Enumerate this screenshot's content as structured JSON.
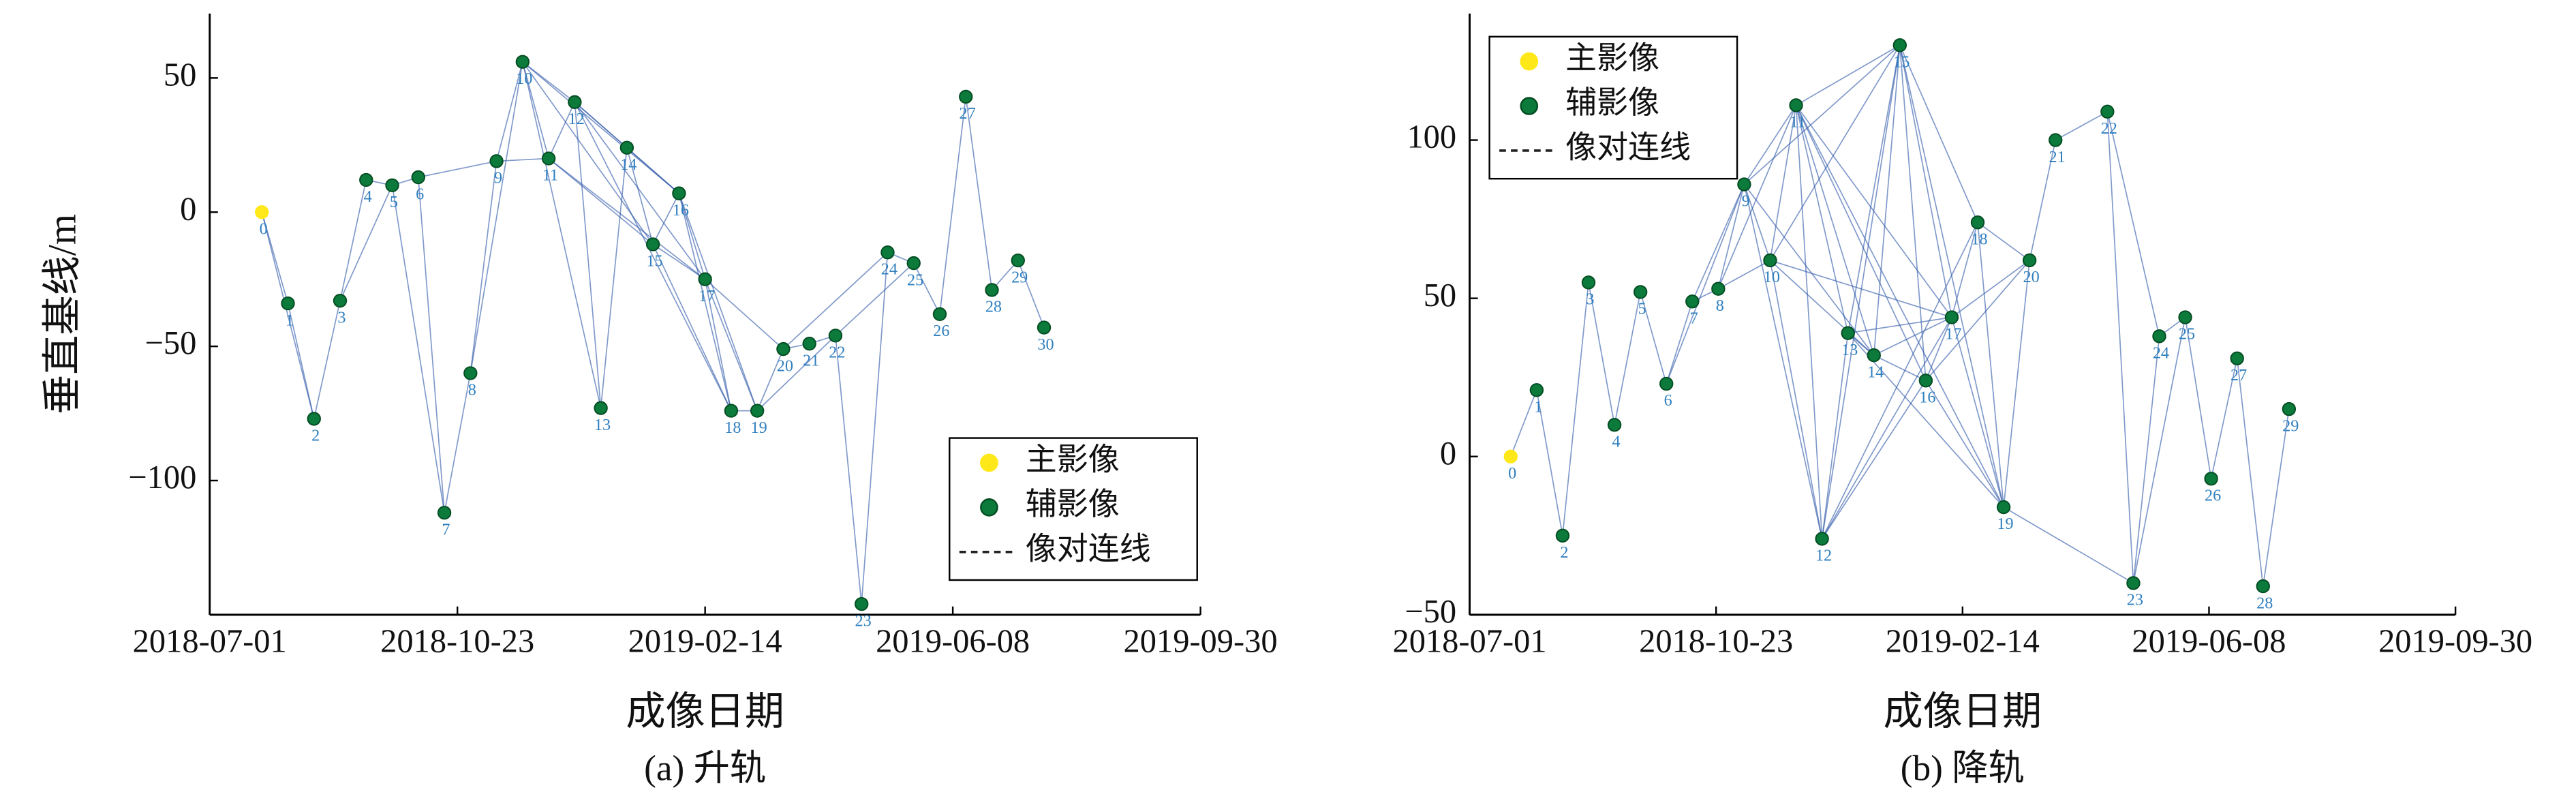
{
  "chart_data": [
    {
      "type": "scatter",
      "caption": "(a) 升轨",
      "xlabel": "成像日期",
      "ylabel": "垂直基线/m",
      "xlim": [
        "2018-07-01",
        "2019-09-30"
      ],
      "xticks": [
        "2018-07-01",
        "2018-10-23",
        "2019-02-14",
        "2019-06-08",
        "2019-09-30"
      ],
      "ylim": [
        -150,
        74
      ],
      "yticks": [
        {
          "value": -100,
          "label": "−100"
        },
        {
          "value": -50,
          "label": "−50"
        },
        0,
        50
      ],
      "legend": "lower right",
      "series": [
        {
          "name": "主影像",
          "color": "#ffe81a",
          "x": [
            "2018-07-25"
          ],
          "values": [
            0
          ],
          "labels": [
            "0"
          ]
        },
        {
          "name": "辅影像",
          "color": "#0b7a3b",
          "x": [
            "2018-08-06",
            "2018-08-18",
            "2018-08-30",
            "2018-09-11",
            "2018-09-23",
            "2018-10-05",
            "2018-10-17",
            "2018-10-29",
            "2018-11-10",
            "2018-11-22",
            "2018-12-04",
            "2018-12-16",
            "2018-12-28",
            "2019-01-09",
            "2019-01-21",
            "2019-02-02",
            "2019-02-14",
            "2019-02-26",
            "2019-03-10",
            "2019-03-22",
            "2019-04-03",
            "2019-04-15",
            "2019-04-27",
            "2019-05-09",
            "2019-05-21",
            "2019-06-02",
            "2019-06-14",
            "2019-06-26",
            "2019-07-08",
            "2019-07-20"
          ],
          "values": [
            -34,
            -77,
            -33,
            12,
            10,
            13,
            -112,
            -60,
            19,
            56,
            20,
            41,
            -73,
            24,
            -12,
            7,
            -25,
            -74,
            -74,
            -51,
            -49,
            -46,
            -146,
            -15,
            -19,
            -38,
            43,
            -29,
            -18,
            -43
          ],
          "labels": [
            "1",
            "2",
            "3",
            "4",
            "5",
            "6",
            "7",
            "8",
            "9",
            "10",
            "11",
            "12",
            "13",
            "14",
            "15",
            "16",
            "17",
            "18",
            "19",
            "20",
            "21",
            "22",
            "23",
            "24",
            "25",
            "26",
            "27",
            "28",
            "29",
            "30"
          ]
        }
      ],
      "links": {
        "name": "像对连线",
        "color": "#2d57a8",
        "pairs": [
          [
            0,
            1
          ],
          [
            0,
            2
          ],
          [
            1,
            2
          ],
          [
            2,
            3
          ],
          [
            3,
            4
          ],
          [
            3,
            5
          ],
          [
            4,
            5
          ],
          [
            5,
            6
          ],
          [
            5,
            7
          ],
          [
            6,
            7
          ],
          [
            6,
            9
          ],
          [
            7,
            8
          ],
          [
            8,
            9
          ],
          [
            8,
            10
          ],
          [
            9,
            10
          ],
          [
            9,
            11
          ],
          [
            10,
            11
          ],
          [
            10,
            12
          ],
          [
            10,
            13
          ],
          [
            10,
            15
          ],
          [
            10,
            16
          ],
          [
            11,
            12
          ],
          [
            11,
            15
          ],
          [
            11,
            17
          ],
          [
            12,
            13
          ],
          [
            12,
            14
          ],
          [
            12,
            16
          ],
          [
            12,
            17
          ],
          [
            12,
            18
          ],
          [
            13,
            14
          ],
          [
            14,
            15
          ],
          [
            14,
            16
          ],
          [
            15,
            16
          ],
          [
            15,
            17
          ],
          [
            15,
            18
          ],
          [
            16,
            17
          ],
          [
            16,
            18
          ],
          [
            16,
            19
          ],
          [
            17,
            18
          ],
          [
            17,
            19
          ],
          [
            17,
            20
          ],
          [
            18,
            19
          ],
          [
            19,
            20
          ],
          [
            19,
            22
          ],
          [
            20,
            21
          ],
          [
            20,
            24
          ],
          [
            21,
            22
          ],
          [
            22,
            23
          ],
          [
            22,
            25
          ],
          [
            23,
            24
          ],
          [
            24,
            25
          ],
          [
            25,
            26
          ],
          [
            26,
            27
          ],
          [
            27,
            28
          ],
          [
            28,
            29
          ],
          [
            29,
            30
          ]
        ]
      }
    },
    {
      "type": "scatter",
      "caption": "(b) 降轨",
      "xlabel": "成像日期",
      "xlim": [
        "2018-07-01",
        "2019-09-30"
      ],
      "xticks": [
        "2018-07-01",
        "2018-10-23",
        "2019-02-14",
        "2019-06-08",
        "2019-09-30"
      ],
      "ylim": [
        -50,
        140
      ],
      "yticks": [
        {
          "value": -50,
          "label": "−50"
        },
        0,
        50,
        100
      ],
      "legend": "upper left",
      "series": [
        {
          "name": "主影像",
          "color": "#ffe81a",
          "x": [
            "2018-07-20"
          ],
          "values": [
            0
          ],
          "labels": [
            "0"
          ]
        },
        {
          "name": "辅影像",
          "color": "#0b7a3b",
          "x": [
            "2018-08-01",
            "2018-08-13",
            "2018-08-25",
            "2018-09-06",
            "2018-09-18",
            "2018-09-30",
            "2018-10-12",
            "2018-10-24",
            "2018-11-05",
            "2018-11-17",
            "2018-11-29",
            "2018-12-11",
            "2018-12-23",
            "2019-01-04",
            "2019-01-16",
            "2019-01-28",
            "2019-02-09",
            "2019-02-21",
            "2019-03-05",
            "2019-03-17",
            "2019-03-29",
            "2019-04-22",
            "2019-05-04",
            "2019-05-16",
            "2019-05-28",
            "2019-06-09",
            "2019-06-21",
            "2019-07-03",
            "2019-07-15"
          ],
          "values": [
            21,
            -25,
            55,
            10,
            52,
            23,
            49,
            53,
            86,
            62,
            111,
            -26,
            39,
            32,
            130,
            24,
            44,
            74,
            -16,
            62,
            100,
            109,
            -40,
            38,
            44,
            -7,
            31,
            -41,
            15
          ],
          "labels": [
            "1",
            "2",
            "3",
            "4",
            "5",
            "6",
            "7",
            "8",
            "9",
            "10",
            "11",
            "12",
            "13",
            "14",
            "15",
            "16",
            "17",
            "18",
            "19",
            "20",
            "21",
            "22",
            "23",
            "24",
            "25",
            "26",
            "27",
            "28",
            "29"
          ]
        }
      ],
      "links": {
        "name": "像对连线",
        "color": "#2d57a8",
        "pairs": [
          [
            0,
            1
          ],
          [
            1,
            2
          ],
          [
            2,
            3
          ],
          [
            3,
            4
          ],
          [
            4,
            5
          ],
          [
            5,
            6
          ],
          [
            6,
            7
          ],
          [
            6,
            9
          ],
          [
            7,
            8
          ],
          [
            7,
            9
          ],
          [
            8,
            9
          ],
          [
            8,
            10
          ],
          [
            8,
            11
          ],
          [
            9,
            10
          ],
          [
            9,
            11
          ],
          [
            9,
            12
          ],
          [
            9,
            14
          ],
          [
            9,
            15
          ],
          [
            10,
            11
          ],
          [
            10,
            12
          ],
          [
            10,
            14
          ],
          [
            10,
            15
          ],
          [
            10,
            17
          ],
          [
            11,
            12
          ],
          [
            11,
            13
          ],
          [
            11,
            14
          ],
          [
            11,
            15
          ],
          [
            11,
            16
          ],
          [
            11,
            17
          ],
          [
            11,
            19
          ],
          [
            12,
            13
          ],
          [
            12,
            15
          ],
          [
            12,
            16
          ],
          [
            12,
            17
          ],
          [
            12,
            18
          ],
          [
            13,
            14
          ],
          [
            13,
            15
          ],
          [
            13,
            17
          ],
          [
            13,
            19
          ],
          [
            14,
            15
          ],
          [
            14,
            16
          ],
          [
            14,
            17
          ],
          [
            15,
            16
          ],
          [
            15,
            17
          ],
          [
            15,
            18
          ],
          [
            15,
            19
          ],
          [
            16,
            17
          ],
          [
            16,
            19
          ],
          [
            16,
            20
          ],
          [
            17,
            18
          ],
          [
            17,
            19
          ],
          [
            17,
            20
          ],
          [
            18,
            19
          ],
          [
            18,
            20
          ],
          [
            19,
            20
          ],
          [
            19,
            23
          ],
          [
            20,
            21
          ],
          [
            21,
            22
          ],
          [
            22,
            23
          ],
          [
            22,
            24
          ],
          [
            23,
            24
          ],
          [
            23,
            25
          ],
          [
            24,
            25
          ],
          [
            25,
            26
          ],
          [
            26,
            27
          ],
          [
            27,
            28
          ],
          [
            28,
            29
          ]
        ]
      }
    }
  ]
}
